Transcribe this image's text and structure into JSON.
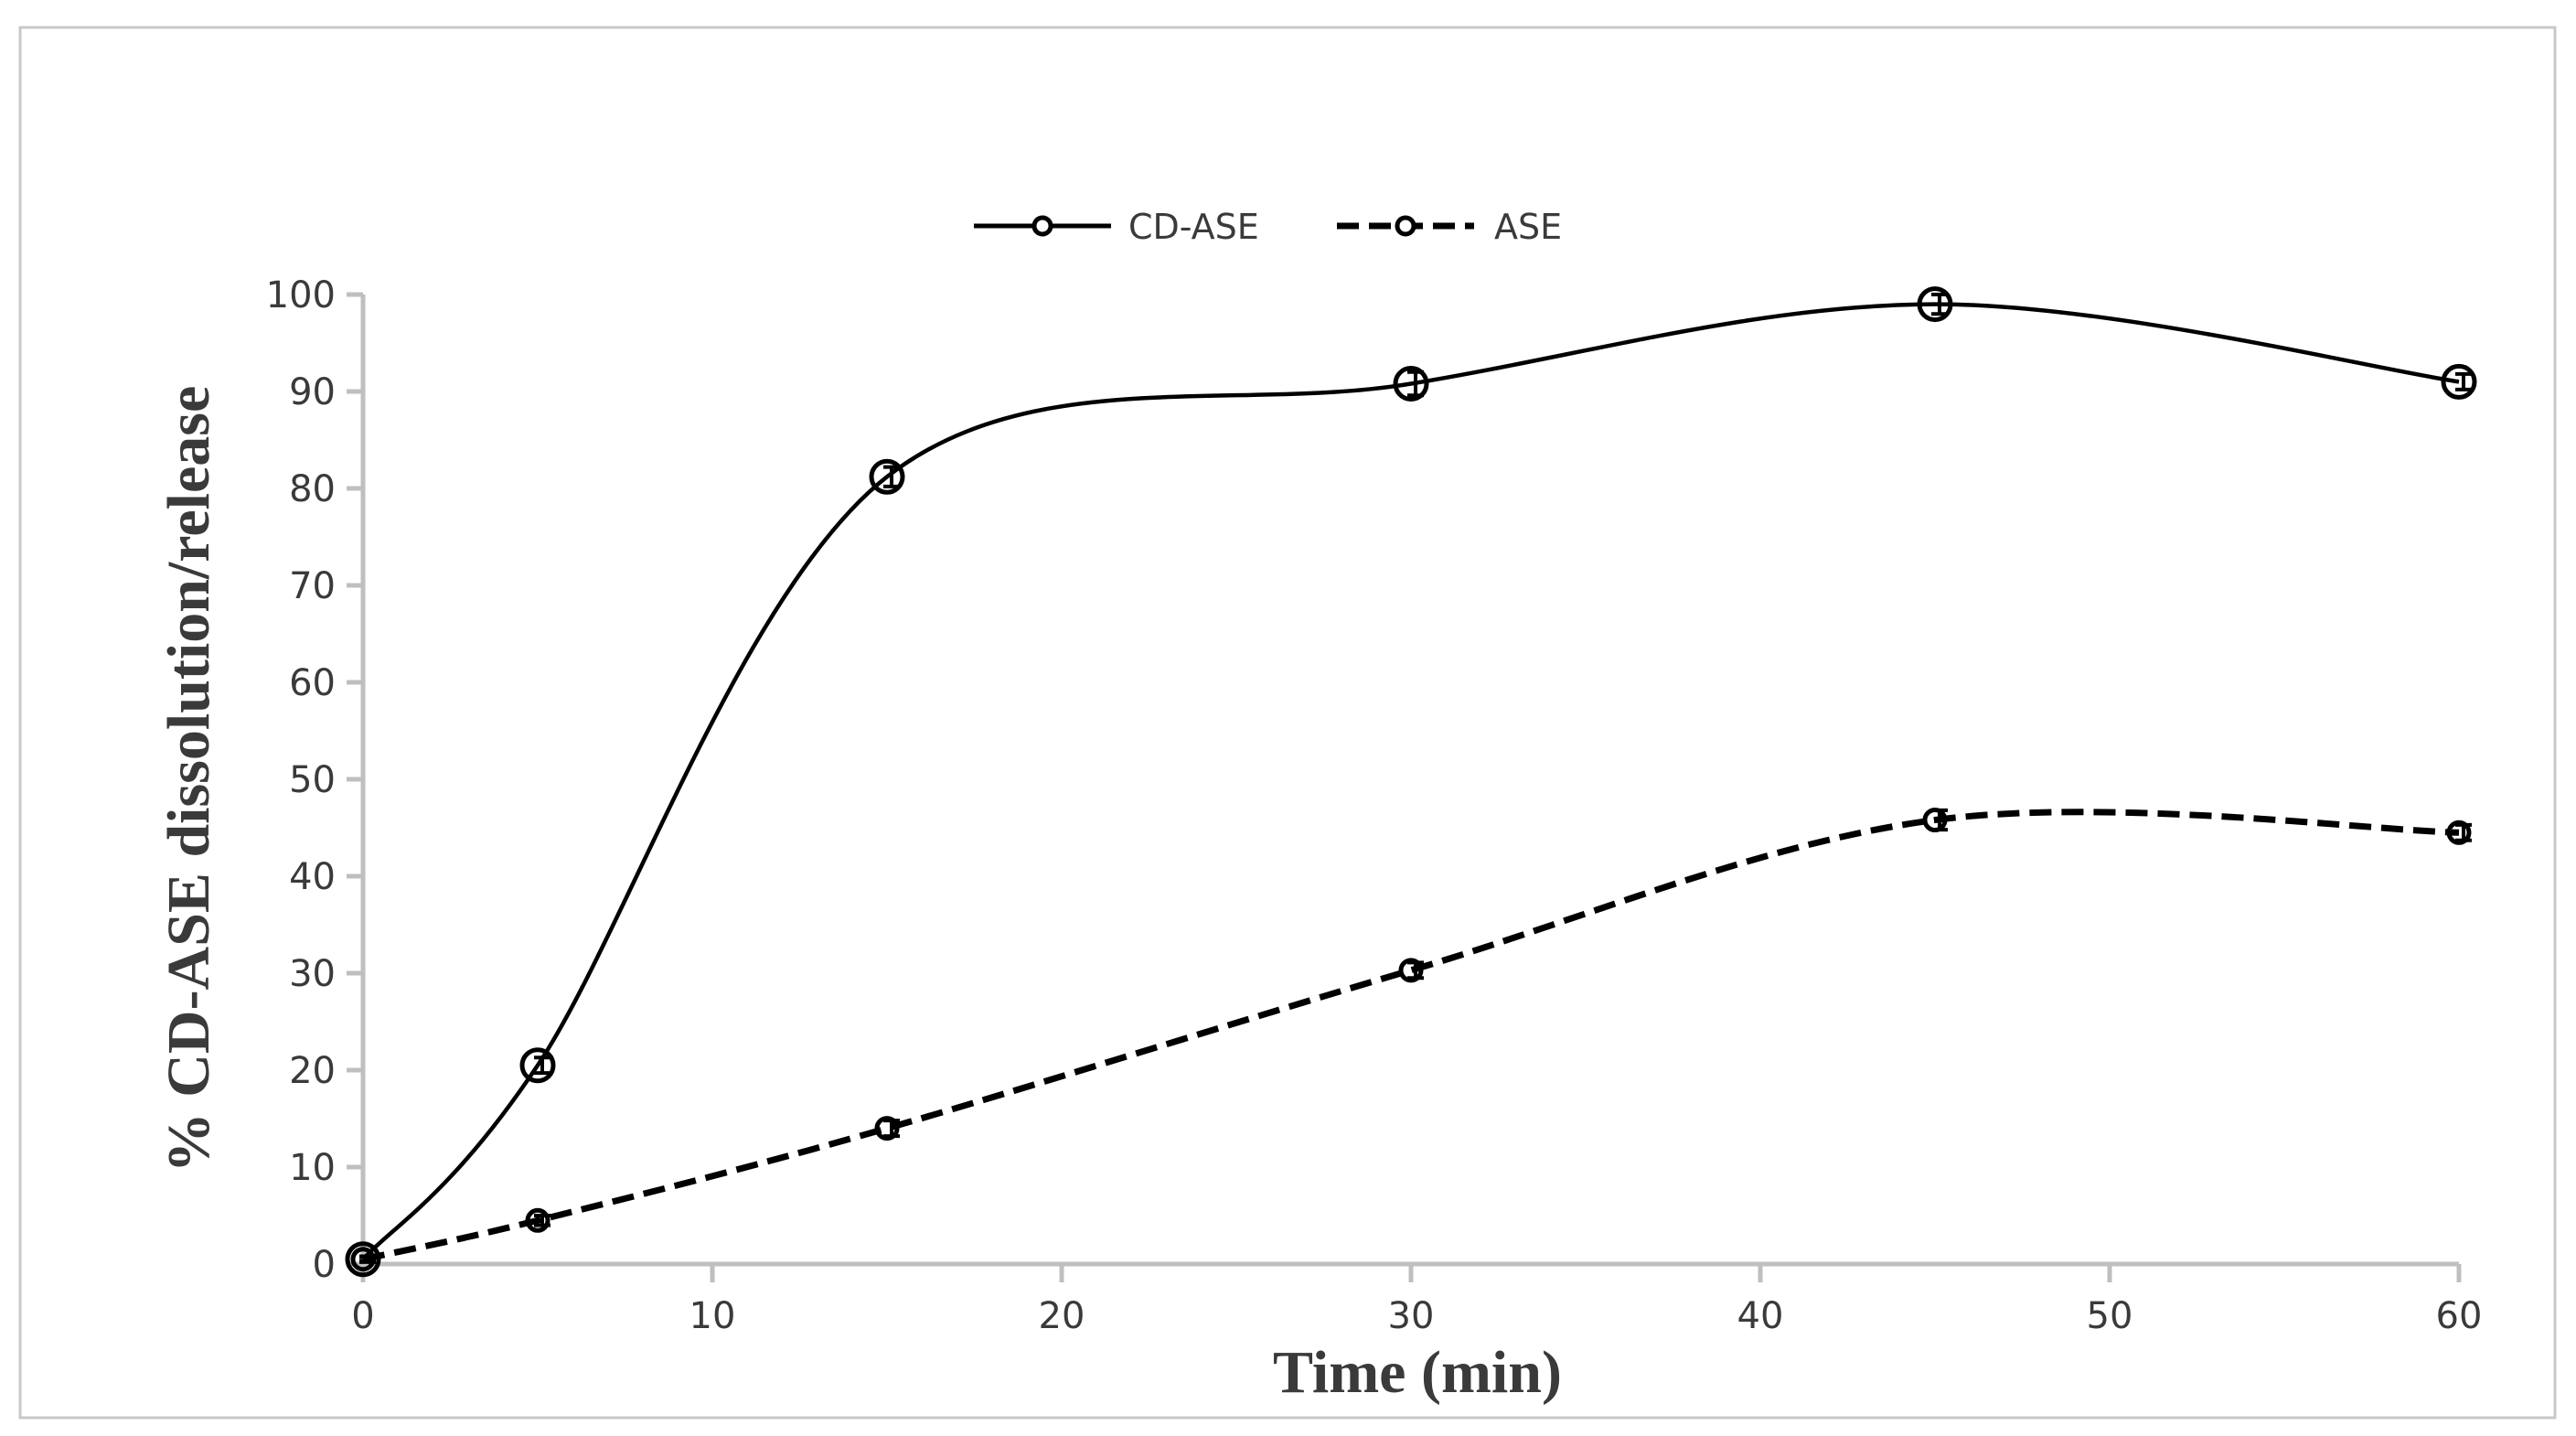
{
  "chart_data": {
    "type": "line",
    "title": "",
    "xlabel": "Time (min)",
    "ylabel": "% CD-ASE dissolution/release",
    "xlim": [
      0,
      60
    ],
    "ylim": [
      0,
      100
    ],
    "x_ticks": [
      0,
      10,
      20,
      30,
      40,
      50,
      60
    ],
    "y_ticks": [
      0,
      10,
      20,
      30,
      40,
      50,
      60,
      70,
      80,
      90,
      100
    ],
    "x_tick_labels": [
      "0",
      "10",
      "20",
      "30",
      "40",
      "50",
      "60"
    ],
    "y_tick_labels": [
      "0",
      "10",
      "20",
      "30",
      "40",
      "50",
      "60",
      "70",
      "80",
      "90",
      "100"
    ],
    "grid": false,
    "legend_position": "top-center",
    "x": [
      0,
      5,
      15,
      30,
      45,
      60
    ],
    "series": [
      {
        "name": "CD-ASE",
        "style": "solid",
        "marker": "large-circle",
        "values": [
          0.5,
          20.5,
          81.2,
          90.8,
          99.0,
          91.0
        ],
        "error": [
          0.3,
          0.8,
          1.0,
          1.2,
          1.0,
          0.8
        ]
      },
      {
        "name": "ASE",
        "style": "dashed",
        "marker": "small-circle",
        "values": [
          0.5,
          4.5,
          14.0,
          30.3,
          45.8,
          44.5
        ],
        "error": [
          0.2,
          0.5,
          0.8,
          0.8,
          1.0,
          0.8
        ]
      }
    ],
    "colors": {
      "line": "#000000",
      "axis": "#bfbfbf",
      "text": "#3a3a3a",
      "border": "#c8c8c8"
    }
  }
}
